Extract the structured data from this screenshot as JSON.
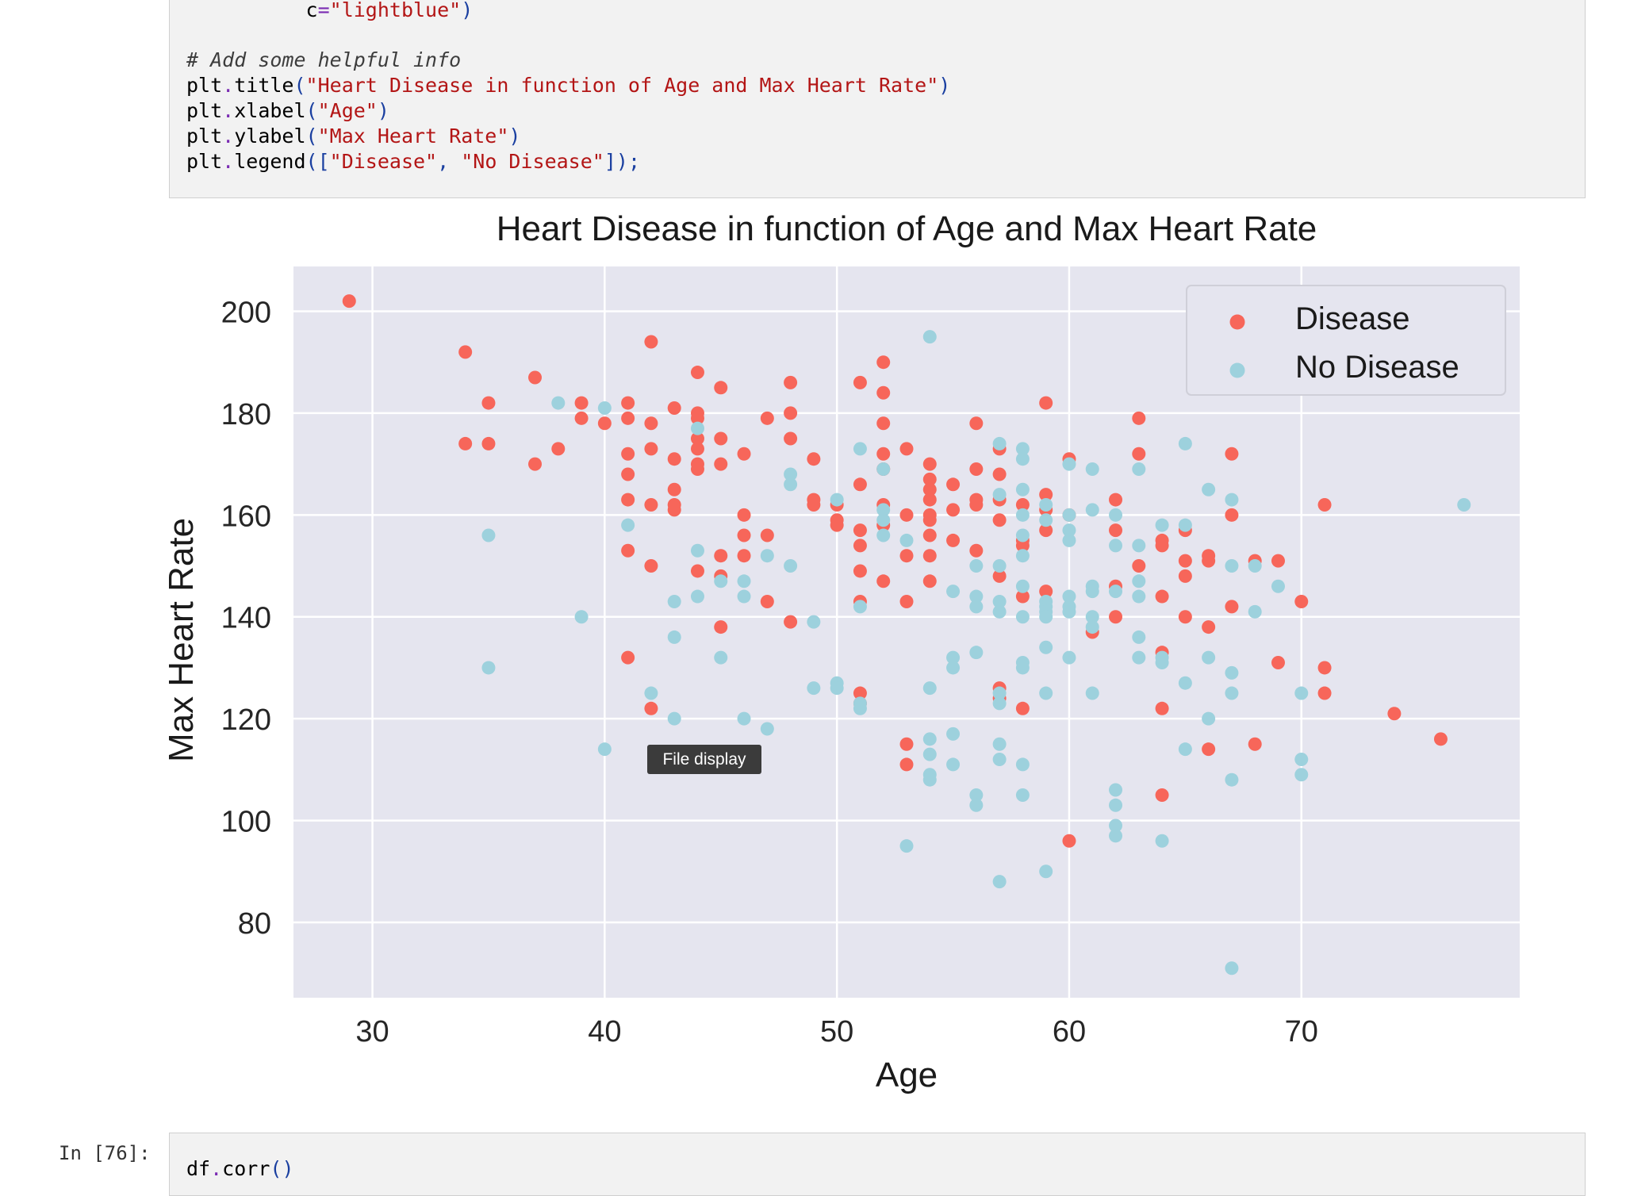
{
  "code_cell": {
    "lines": [
      {
        "indent": "          ",
        "name": "c",
        "eq": "=",
        "str": "\"lightblue\"",
        "close": ")"
      },
      {
        "comment": "# Add some helpful info"
      },
      {
        "obj": "plt",
        "dot": ".",
        "fn": "title",
        "open": "(",
        "args": "\"Heart Disease in function of Age and Max Heart Rate\"",
        "close": ")"
      },
      {
        "obj": "plt",
        "dot": ".",
        "fn": "xlabel",
        "open": "(",
        "args": "\"Age\"",
        "close": ")"
      },
      {
        "obj": "plt",
        "dot": ".",
        "fn": "ylabel",
        "open": "(",
        "args": "\"Max Heart Rate\"",
        "close": ")"
      },
      {
        "obj": "plt",
        "dot": ".",
        "fn": "legend",
        "open": "([",
        "args1": "\"Disease\"",
        "sep": ", ",
        "args2": "\"No Disease\"",
        "close": "]);"
      }
    ]
  },
  "tooltip": {
    "label": "File display"
  },
  "next_cell": {
    "prompt": "In [76]:",
    "obj": "df",
    "dot": ".",
    "fn": "corr",
    "parens": "()"
  },
  "colors": {
    "disease": "#f7665a",
    "no_disease": "#9dd1dd",
    "plot_bg": "#e5e5ef",
    "grid": "#ffffff"
  },
  "chart_data": {
    "type": "scatter",
    "title": "Heart Disease in function of Age and Max Heart Rate",
    "xlabel": "Age",
    "ylabel": "Max Heart Rate",
    "xlim": [
      26.6,
      79.4
    ],
    "ylim": [
      65.2,
      208.8
    ],
    "xticks": [
      30,
      40,
      50,
      60,
      70
    ],
    "yticks": [
      80,
      100,
      120,
      140,
      160,
      180,
      200
    ],
    "grid": true,
    "legend_position": "top-right",
    "series": [
      {
        "name": "Disease",
        "color": "#f7665a",
        "points": [
          [
            29,
            202
          ],
          [
            34,
            192
          ],
          [
            34,
            174
          ],
          [
            35,
            182
          ],
          [
            35,
            174
          ],
          [
            37,
            187
          ],
          [
            37,
            170
          ],
          [
            38,
            173
          ],
          [
            39,
            182
          ],
          [
            39,
            179
          ],
          [
            40,
            178
          ],
          [
            41,
            182
          ],
          [
            41,
            179
          ],
          [
            41,
            172
          ],
          [
            41,
            168
          ],
          [
            41,
            163
          ],
          [
            41,
            153
          ],
          [
            41,
            132
          ],
          [
            42,
            194
          ],
          [
            42,
            178
          ],
          [
            42,
            173
          ],
          [
            42,
            162
          ],
          [
            42,
            150
          ],
          [
            42,
            122
          ],
          [
            43,
            181
          ],
          [
            43,
            171
          ],
          [
            43,
            165
          ],
          [
            43,
            162
          ],
          [
            43,
            161
          ],
          [
            44,
            188
          ],
          [
            44,
            180
          ],
          [
            44,
            179
          ],
          [
            44,
            175
          ],
          [
            44,
            173
          ],
          [
            44,
            170
          ],
          [
            44,
            169
          ],
          [
            44,
            149
          ],
          [
            45,
            185
          ],
          [
            45,
            175
          ],
          [
            45,
            170
          ],
          [
            45,
            152
          ],
          [
            45,
            148
          ],
          [
            45,
            138
          ],
          [
            46,
            172
          ],
          [
            46,
            160
          ],
          [
            46,
            156
          ],
          [
            46,
            152
          ],
          [
            47,
            179
          ],
          [
            47,
            156
          ],
          [
            47,
            143
          ],
          [
            48,
            186
          ],
          [
            48,
            180
          ],
          [
            48,
            175
          ],
          [
            48,
            139
          ],
          [
            49,
            171
          ],
          [
            49,
            163
          ],
          [
            49,
            162
          ],
          [
            50,
            162
          ],
          [
            50,
            159
          ],
          [
            50,
            158
          ],
          [
            51,
            186
          ],
          [
            51,
            166
          ],
          [
            51,
            157
          ],
          [
            51,
            154
          ],
          [
            51,
            149
          ],
          [
            51,
            143
          ],
          [
            51,
            125
          ],
          [
            51,
            123
          ],
          [
            52,
            190
          ],
          [
            52,
            184
          ],
          [
            52,
            178
          ],
          [
            52,
            172
          ],
          [
            52,
            169
          ],
          [
            52,
            162
          ],
          [
            52,
            158
          ],
          [
            52,
            147
          ],
          [
            53,
            173
          ],
          [
            53,
            160
          ],
          [
            53,
            152
          ],
          [
            53,
            143
          ],
          [
            53,
            115
          ],
          [
            53,
            111
          ],
          [
            54,
            170
          ],
          [
            54,
            167
          ],
          [
            54,
            165
          ],
          [
            54,
            163
          ],
          [
            54,
            160
          ],
          [
            54,
            159
          ],
          [
            54,
            156
          ],
          [
            54,
            152
          ],
          [
            54,
            147
          ],
          [
            55,
            166
          ],
          [
            55,
            161
          ],
          [
            55,
            155
          ],
          [
            56,
            178
          ],
          [
            56,
            169
          ],
          [
            56,
            163
          ],
          [
            56,
            162
          ],
          [
            56,
            153
          ],
          [
            57,
            173
          ],
          [
            57,
            168
          ],
          [
            57,
            163
          ],
          [
            57,
            159
          ],
          [
            57,
            148
          ],
          [
            57,
            126
          ],
          [
            57,
            124
          ],
          [
            58,
            162
          ],
          [
            58,
            155
          ],
          [
            58,
            154
          ],
          [
            58,
            144
          ],
          [
            58,
            122
          ],
          [
            59,
            182
          ],
          [
            59,
            164
          ],
          [
            59,
            161
          ],
          [
            59,
            157
          ],
          [
            59,
            145
          ],
          [
            60,
            171
          ],
          [
            60,
            160
          ],
          [
            60,
            96
          ],
          [
            61,
            137
          ],
          [
            62,
            163
          ],
          [
            62,
            157
          ],
          [
            62,
            146
          ],
          [
            62,
            140
          ],
          [
            63,
            179
          ],
          [
            63,
            172
          ],
          [
            63,
            150
          ],
          [
            64,
            155
          ],
          [
            64,
            154
          ],
          [
            64,
            144
          ],
          [
            64,
            133
          ],
          [
            64,
            122
          ],
          [
            64,
            105
          ],
          [
            65,
            157
          ],
          [
            65,
            151
          ],
          [
            65,
            148
          ],
          [
            65,
            140
          ],
          [
            66,
            152
          ],
          [
            66,
            151
          ],
          [
            66,
            138
          ],
          [
            66,
            114
          ],
          [
            67,
            172
          ],
          [
            67,
            160
          ],
          [
            67,
            142
          ],
          [
            68,
            151
          ],
          [
            68,
            115
          ],
          [
            69,
            151
          ],
          [
            69,
            131
          ],
          [
            70,
            143
          ],
          [
            71,
            162
          ],
          [
            71,
            130
          ],
          [
            71,
            125
          ],
          [
            74,
            121
          ],
          [
            76,
            116
          ]
        ]
      },
      {
        "name": "No Disease",
        "color": "#9dd1dd",
        "points": [
          [
            35,
            156
          ],
          [
            35,
            130
          ],
          [
            38,
            182
          ],
          [
            39,
            140
          ],
          [
            40,
            181
          ],
          [
            40,
            114
          ],
          [
            41,
            158
          ],
          [
            42,
            125
          ],
          [
            43,
            143
          ],
          [
            43,
            136
          ],
          [
            43,
            120
          ],
          [
            44,
            177
          ],
          [
            44,
            153
          ],
          [
            44,
            144
          ],
          [
            45,
            147
          ],
          [
            45,
            132
          ],
          [
            46,
            147
          ],
          [
            46,
            144
          ],
          [
            46,
            120
          ],
          [
            47,
            152
          ],
          [
            47,
            118
          ],
          [
            48,
            168
          ],
          [
            48,
            166
          ],
          [
            48,
            150
          ],
          [
            49,
            139
          ],
          [
            49,
            126
          ],
          [
            50,
            163
          ],
          [
            50,
            127
          ],
          [
            50,
            126
          ],
          [
            51,
            173
          ],
          [
            51,
            142
          ],
          [
            51,
            123
          ],
          [
            51,
            122
          ],
          [
            52,
            169
          ],
          [
            52,
            161
          ],
          [
            52,
            159
          ],
          [
            52,
            156
          ],
          [
            53,
            155
          ],
          [
            53,
            95
          ],
          [
            54,
            195
          ],
          [
            54,
            126
          ],
          [
            54,
            116
          ],
          [
            54,
            113
          ],
          [
            54,
            109
          ],
          [
            54,
            108
          ],
          [
            55,
            145
          ],
          [
            55,
            132
          ],
          [
            55,
            130
          ],
          [
            55,
            117
          ],
          [
            55,
            111
          ],
          [
            56,
            150
          ],
          [
            56,
            144
          ],
          [
            56,
            142
          ],
          [
            56,
            133
          ],
          [
            56,
            105
          ],
          [
            56,
            103
          ],
          [
            57,
            174
          ],
          [
            57,
            164
          ],
          [
            57,
            150
          ],
          [
            57,
            143
          ],
          [
            57,
            141
          ],
          [
            57,
            125
          ],
          [
            57,
            123
          ],
          [
            57,
            115
          ],
          [
            57,
            112
          ],
          [
            57,
            88
          ],
          [
            58,
            173
          ],
          [
            58,
            171
          ],
          [
            58,
            165
          ],
          [
            58,
            160
          ],
          [
            58,
            156
          ],
          [
            58,
            152
          ],
          [
            58,
            146
          ],
          [
            58,
            140
          ],
          [
            58,
            131
          ],
          [
            58,
            130
          ],
          [
            58,
            111
          ],
          [
            58,
            105
          ],
          [
            59,
            162
          ],
          [
            59,
            159
          ],
          [
            59,
            143
          ],
          [
            59,
            142
          ],
          [
            59,
            141
          ],
          [
            59,
            140
          ],
          [
            59,
            134
          ],
          [
            59,
            125
          ],
          [
            59,
            90
          ],
          [
            60,
            170
          ],
          [
            60,
            160
          ],
          [
            60,
            157
          ],
          [
            60,
            155
          ],
          [
            60,
            144
          ],
          [
            60,
            142
          ],
          [
            60,
            141
          ],
          [
            60,
            132
          ],
          [
            61,
            169
          ],
          [
            61,
            161
          ],
          [
            61,
            146
          ],
          [
            61,
            145
          ],
          [
            61,
            140
          ],
          [
            61,
            138
          ],
          [
            61,
            125
          ],
          [
            62,
            160
          ],
          [
            62,
            154
          ],
          [
            62,
            145
          ],
          [
            62,
            106
          ],
          [
            62,
            103
          ],
          [
            62,
            99
          ],
          [
            62,
            97
          ],
          [
            63,
            169
          ],
          [
            63,
            154
          ],
          [
            63,
            147
          ],
          [
            63,
            144
          ],
          [
            63,
            136
          ],
          [
            63,
            132
          ],
          [
            64,
            158
          ],
          [
            64,
            132
          ],
          [
            64,
            131
          ],
          [
            64,
            96
          ],
          [
            65,
            174
          ],
          [
            65,
            158
          ],
          [
            65,
            127
          ],
          [
            65,
            114
          ],
          [
            66,
            165
          ],
          [
            66,
            132
          ],
          [
            66,
            120
          ],
          [
            67,
            163
          ],
          [
            67,
            150
          ],
          [
            67,
            129
          ],
          [
            67,
            125
          ],
          [
            67,
            108
          ],
          [
            67,
            71
          ],
          [
            68,
            150
          ],
          [
            68,
            141
          ],
          [
            69,
            146
          ],
          [
            70,
            125
          ],
          [
            70,
            112
          ],
          [
            70,
            109
          ],
          [
            77,
            162
          ]
        ]
      }
    ]
  }
}
